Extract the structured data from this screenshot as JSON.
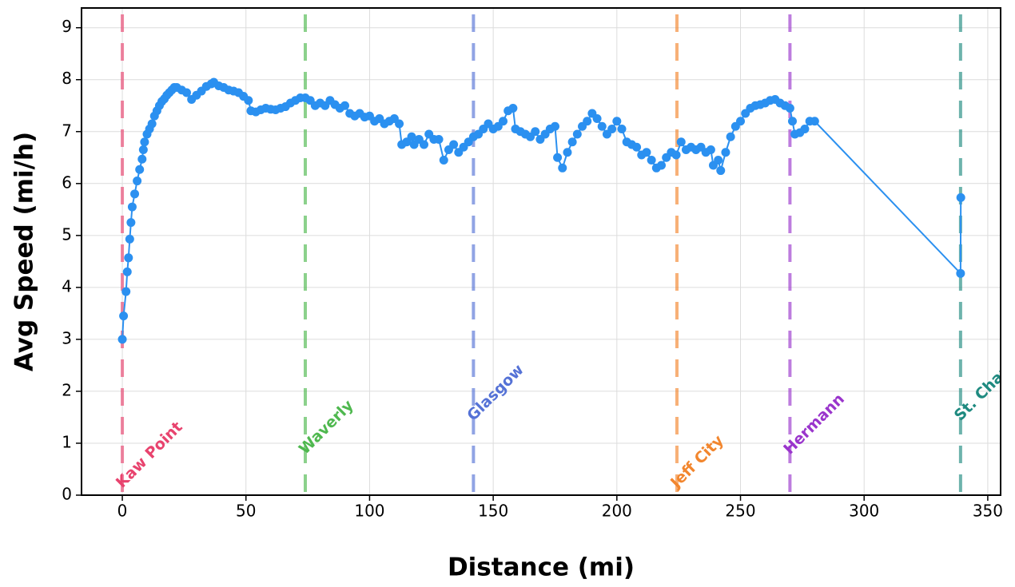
{
  "chart_data": {
    "type": "line",
    "xlabel": "Distance (mi)",
    "ylabel": "Avg Speed (mi/h)",
    "xlim": [
      -16.5,
      355.2
    ],
    "ylim": [
      0,
      9.38
    ],
    "xticks": [
      0,
      50,
      100,
      150,
      200,
      250,
      300,
      350
    ],
    "yticks": [
      0,
      1,
      2,
      3,
      4,
      5,
      6,
      7,
      8,
      9
    ],
    "grid": true,
    "markers": [
      {
        "x": 0,
        "label": "Kaw Point",
        "color": "#e8436e"
      },
      {
        "x": 74,
        "label": "Waverly",
        "color": "#4fb84f"
      },
      {
        "x": 142,
        "label": "Glasgow",
        "color": "#5572d6"
      },
      {
        "x": 224.3,
        "label": "Jeff City",
        "color": "#f2862e"
      },
      {
        "x": 270,
        "label": "Hermann",
        "color": "#9a35cc"
      },
      {
        "x": 339,
        "label": "St. Charles",
        "color": "#1e8a80"
      }
    ],
    "series": [
      {
        "name": "Avg Speed",
        "color": "#2b90f0",
        "x": [
          0,
          0.5,
          1.5,
          2,
          2.5,
          3,
          3.5,
          4,
          5,
          6,
          7,
          8,
          8.5,
          9,
          10,
          11,
          12,
          13,
          14,
          15,
          16,
          17,
          18,
          19,
          20,
          21,
          22,
          24,
          26,
          28,
          30,
          32,
          34,
          36,
          37,
          39,
          41,
          43,
          45,
          47,
          49,
          51,
          52,
          54,
          56,
          58,
          60,
          62,
          64,
          66,
          68,
          70,
          72,
          74,
          76,
          78,
          80,
          82,
          84,
          86,
          88,
          90,
          92,
          94,
          96,
          98,
          100,
          102,
          104,
          106,
          108,
          110,
          112,
          113,
          115,
          117,
          118,
          120,
          122,
          124,
          126,
          128,
          130,
          132,
          134,
          136,
          138,
          140,
          142,
          144,
          146,
          148,
          150,
          152,
          154,
          156,
          158,
          159,
          161,
          163,
          165,
          167,
          169,
          171,
          173,
          175,
          176,
          178,
          180,
          182,
          184,
          186,
          188,
          190,
          192,
          194,
          196,
          198,
          200,
          202,
          204,
          206,
          208,
          210,
          212,
          214,
          216,
          218,
          220,
          222,
          224,
          226,
          228,
          230,
          232,
          234,
          236,
          238,
          239,
          241,
          242,
          244,
          246,
          248,
          250,
          252,
          254,
          256,
          258,
          260,
          262,
          264,
          266,
          268,
          270,
          271,
          272,
          274,
          276,
          278,
          280,
          339,
          339.1
        ],
        "values": [
          3.0,
          3.45,
          3.92,
          4.3,
          4.57,
          4.93,
          5.25,
          5.55,
          5.8,
          6.05,
          6.27,
          6.47,
          6.65,
          6.8,
          6.95,
          7.05,
          7.15,
          7.3,
          7.4,
          7.5,
          7.58,
          7.63,
          7.7,
          7.75,
          7.8,
          7.85,
          7.85,
          7.8,
          7.75,
          7.62,
          7.7,
          7.78,
          7.87,
          7.92,
          7.95,
          7.88,
          7.85,
          7.8,
          7.78,
          7.75,
          7.68,
          7.6,
          7.4,
          7.38,
          7.42,
          7.45,
          7.43,
          7.42,
          7.45,
          7.48,
          7.55,
          7.6,
          7.65,
          7.65,
          7.6,
          7.5,
          7.55,
          7.5,
          7.6,
          7.52,
          7.45,
          7.5,
          7.35,
          7.3,
          7.35,
          7.28,
          7.3,
          7.2,
          7.25,
          7.15,
          7.2,
          7.25,
          7.15,
          6.75,
          6.8,
          6.9,
          6.75,
          6.85,
          6.75,
          6.95,
          6.85,
          6.85,
          6.45,
          6.65,
          6.75,
          6.6,
          6.7,
          6.8,
          6.9,
          6.95,
          7.05,
          7.15,
          7.05,
          7.1,
          7.2,
          7.4,
          7.45,
          7.05,
          7.0,
          6.95,
          6.9,
          7.0,
          6.85,
          6.95,
          7.05,
          7.1,
          6.5,
          6.3,
          6.6,
          6.8,
          6.95,
          7.1,
          7.2,
          7.35,
          7.25,
          7.1,
          6.95,
          7.05,
          7.2,
          7.05,
          6.8,
          6.75,
          6.7,
          6.55,
          6.6,
          6.45,
          6.3,
          6.35,
          6.5,
          6.6,
          6.55,
          6.8,
          6.65,
          6.7,
          6.65,
          6.7,
          6.6,
          6.65,
          6.35,
          6.45,
          6.25,
          6.6,
          6.9,
          7.1,
          7.2,
          7.35,
          7.45,
          7.5,
          7.52,
          7.55,
          7.6,
          7.62,
          7.55,
          7.5,
          7.45,
          7.2,
          6.95,
          6.98,
          7.05,
          7.2,
          7.2,
          4.27,
          5.73
        ]
      }
    ]
  }
}
